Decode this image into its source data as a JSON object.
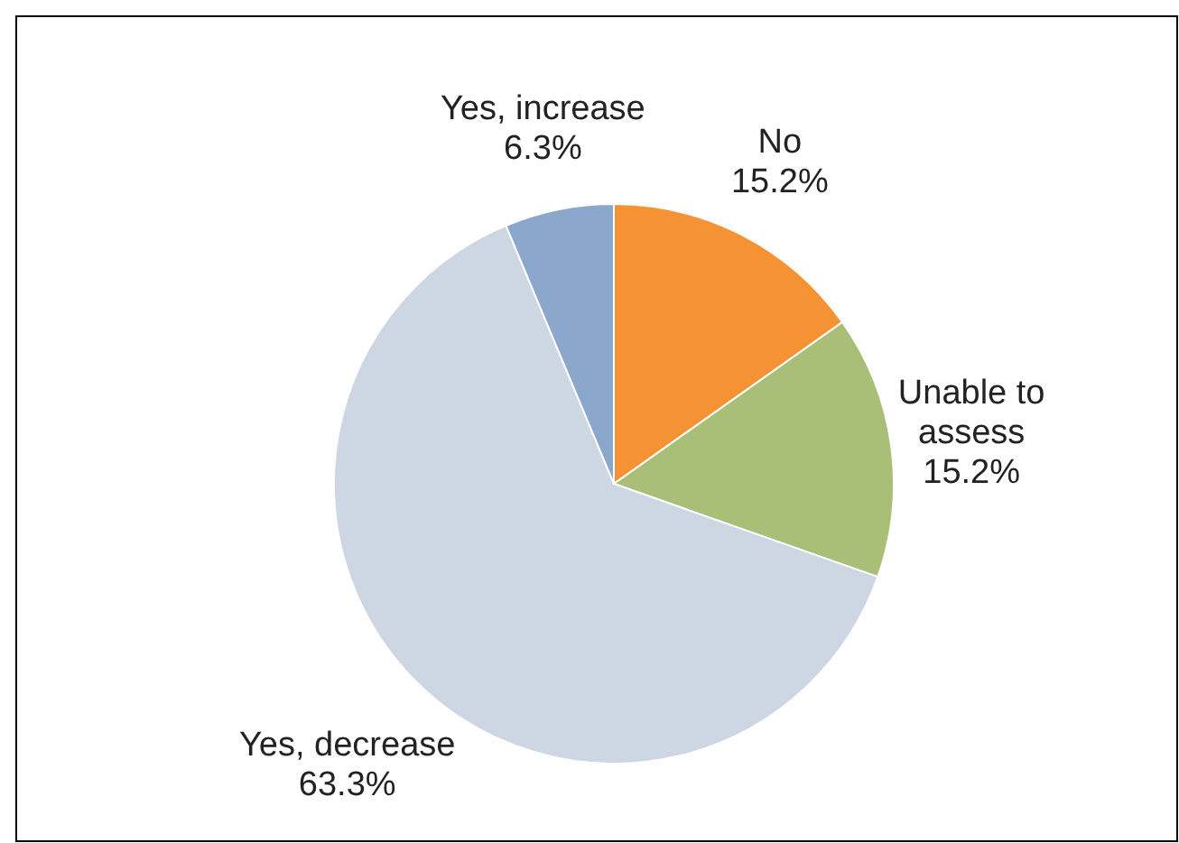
{
  "chart_data": {
    "type": "pie",
    "categories": [
      "No",
      "Unable to assess",
      "Yes, decrease",
      "Yes, increase"
    ],
    "values": [
      15.2,
      15.2,
      63.3,
      6.3
    ],
    "colors": [
      "#f59233",
      "#a9bf78",
      "#cdd6e3",
      "#8ba7cc"
    ],
    "value_labels": [
      "15.2%",
      "15.2%",
      "63.3%",
      "6.3%"
    ]
  }
}
